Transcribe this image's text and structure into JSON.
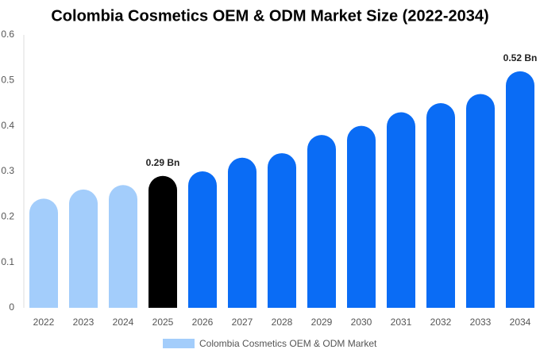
{
  "chart_data": {
    "type": "bar",
    "title": "Colombia Cosmetics OEM & ODM Market Size (2022-2034)",
    "categories": [
      "2022",
      "2023",
      "2024",
      "2025",
      "2026",
      "2027",
      "2028",
      "2029",
      "2030",
      "2031",
      "2032",
      "2033",
      "2034"
    ],
    "series": [
      {
        "name": "Colombia Cosmetics OEM & ODM Market",
        "color": "#a3cdfb",
        "values": [
          0.24,
          0.26,
          0.27,
          0.29,
          0.3,
          0.33,
          0.34,
          0.38,
          0.4,
          0.43,
          0.45,
          0.47,
          0.52
        ],
        "value_labels": [
          null,
          null,
          null,
          "0.29 Bn",
          null,
          null,
          null,
          null,
          null,
          null,
          null,
          null,
          "0.52 Bn"
        ],
        "colors": [
          "#a3cdfb",
          "#a3cdfb",
          "#a3cdfb",
          "#000000",
          "#0a6cf5",
          "#0a6cf5",
          "#0a6cf5",
          "#0a6cf5",
          "#0a6cf5",
          "#0a6cf5",
          "#0a6cf5",
          "#0a6cf5",
          "#0a6cf5"
        ]
      }
    ],
    "ylim": [
      0,
      0.6
    ],
    "yticks": [
      0,
      0.1,
      0.2,
      0.3,
      0.4,
      0.5,
      0.6
    ],
    "grid": false
  }
}
